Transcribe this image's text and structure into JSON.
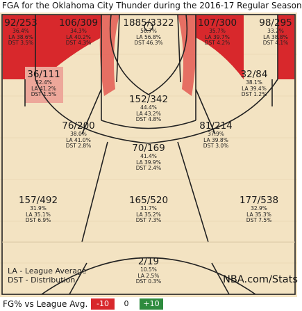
{
  "title": "FGA for the Oklahoma City Thunder during the 2016-17 Regular Season",
  "colors": {
    "court": "#f3e3c2",
    "line": "#222222",
    "hot_strong": "#d8282c",
    "hot_mid": "#e35a52",
    "hot_light": "#eda79a",
    "neutral": "#f3e3c2",
    "legend_negative": "#d8282c",
    "legend_positive": "#2e8b3e"
  },
  "zones": [
    {
      "id": "left-corner-3",
      "fg": "92/253",
      "pct": "36.4%",
      "la": "LA 38.6%",
      "dst": "DST 3.5%",
      "tone": "hot_strong"
    },
    {
      "id": "left-wing-3",
      "fg": "106/309",
      "pct": "34.3%",
      "la": "LA 40.2%",
      "dst": "DST 4.3%",
      "tone": "hot_strong"
    },
    {
      "id": "restricted-area",
      "fg": "1885/3322",
      "pct": "56.7%",
      "la": "LA 56.8%",
      "dst": "DST 46.3%",
      "tone": "neutral"
    },
    {
      "id": "right-wing-3",
      "fg": "107/300",
      "pct": "35.7%",
      "la": "LA 39.7%",
      "dst": "DST 4.2%",
      "tone": "hot_strong"
    },
    {
      "id": "right-corner-3",
      "fg": "98/295",
      "pct": "33.2%",
      "la": "LA 38.8%",
      "dst": "DST 4.1%",
      "tone": "hot_strong"
    },
    {
      "id": "left-baseline-mid",
      "fg": "36/111",
      "pct": "32.4%",
      "la": "LA 41.2%",
      "dst": "DST 1.5%",
      "tone": "hot_light"
    },
    {
      "id": "right-baseline-mid",
      "fg": "32/84",
      "pct": "38.1%",
      "la": "LA 39.4%",
      "dst": "DST 1.2%",
      "tone": "neutral"
    },
    {
      "id": "paint-non-ra",
      "fg": "152/342",
      "pct": "44.4%",
      "la": "LA 43.2%",
      "dst": "DST 4.8%",
      "tone": "neutral"
    },
    {
      "id": "left-elbow-mid",
      "fg": "76/200",
      "pct": "38.0%",
      "la": "LA 41.0%",
      "dst": "DST 2.8%",
      "tone": "neutral"
    },
    {
      "id": "right-elbow-mid",
      "fg": "81/214",
      "pct": "37.9%",
      "la": "LA 39.8%",
      "dst": "DST 3.0%",
      "tone": "neutral"
    },
    {
      "id": "top-key-mid",
      "fg": "70/169",
      "pct": "41.4%",
      "la": "LA 39.9%",
      "dst": "DST 2.4%",
      "tone": "neutral"
    },
    {
      "id": "left-above-break-3",
      "fg": "157/492",
      "pct": "31.9%",
      "la": "LA 35.1%",
      "dst": "DST 6.9%",
      "tone": "neutral"
    },
    {
      "id": "top-above-break-3",
      "fg": "165/520",
      "pct": "31.7%",
      "la": "LA 35.2%",
      "dst": "DST 7.3%",
      "tone": "neutral"
    },
    {
      "id": "right-above-break-3",
      "fg": "177/538",
      "pct": "32.9%",
      "la": "LA 35.3%",
      "dst": "DST 7.5%",
      "tone": "neutral"
    },
    {
      "id": "backcourt",
      "fg": "2/19",
      "pct": "10.5%",
      "la": "LA 2.5%",
      "dst": "DST 0.3%",
      "tone": "neutral"
    }
  ],
  "notes": {
    "line1": "LA - League Average",
    "line2": "DST - Distribution"
  },
  "brand": "NBA.com/Stats",
  "legend": {
    "label": "FG% vs League Avg.",
    "negative": "-10",
    "zero": "0",
    "positive": "+10"
  }
}
